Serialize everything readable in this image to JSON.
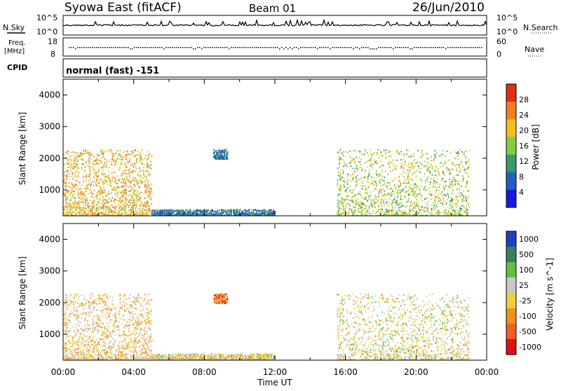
{
  "header": {
    "station": "Syowa East (fitACF)",
    "beam": "Beam 01",
    "date": "26/Jun/2010"
  },
  "nsky_panel": {
    "left_label": "N.Sky",
    "right_label": "N.Search",
    "left_ticks": [
      "10^5",
      "10^0"
    ],
    "right_ticks": [
      "10^5",
      "10^0"
    ]
  },
  "freq_panel": {
    "left_label_1": "Freq.",
    "left_label_2": "[MHz]",
    "right_label": "Nave",
    "left_ticks": [
      "18",
      "8"
    ],
    "right_ticks": [
      "60",
      "0"
    ]
  },
  "cpid": {
    "label": "CPID",
    "value": "normal (fast) -151"
  },
  "power_panel": {
    "ylabel": "Slant Range [km]",
    "yticks": [
      "1000",
      "2000",
      "3000",
      "4000"
    ],
    "colorbar_label": "Power [dB]",
    "colorbar_ticks": [
      "4",
      "8",
      "12",
      "16",
      "20",
      "24",
      "28"
    ],
    "colors": [
      "#1818e0",
      "#2060c0",
      "#3a9a6a",
      "#88cc44",
      "#f0c020",
      "#f08020",
      "#e03010"
    ]
  },
  "velocity_panel": {
    "ylabel": "Slant Range [km]",
    "yticks": [
      "1000",
      "2000",
      "3000",
      "4000"
    ],
    "colorbar_label": "Velocity [m s^-1]",
    "colorbar_ticks": [
      "1000",
      "500",
      "100",
      "25",
      "-25",
      "-100",
      "-500",
      "-1000"
    ],
    "colors": [
      "#2040c0",
      "#3a8060",
      "#60c040",
      "#c8c8c8",
      "#f0d040",
      "#f09020",
      "#f06020",
      "#e01010"
    ]
  },
  "xaxis": {
    "label": "Time UT",
    "ticks": [
      "00:00",
      "04:00",
      "08:00",
      "12:00",
      "16:00",
      "20:00",
      "00:00"
    ]
  },
  "chart_data": [
    {
      "type": "heatmap",
      "title": "Power",
      "x_range": [
        "00:00",
        "24:00"
      ],
      "ylabel": "Slant Range [km]",
      "ylim": [
        180,
        4500
      ],
      "colorbar": {
        "label": "Power [dB]",
        "ticks": [
          4,
          8,
          12,
          16,
          20,
          24,
          28
        ],
        "range": [
          0,
          30
        ]
      },
      "regions": [
        {
          "t_start": 0.0,
          "t_end": 5.0,
          "range_min": 200,
          "range_max": 2300,
          "typical_power": 20
        },
        {
          "t_start": 5.0,
          "t_end": 12.0,
          "range_min": 200,
          "range_max": 400,
          "typical_power": 8
        },
        {
          "t_start": 8.5,
          "t_end": 9.3,
          "range_min": 2000,
          "range_max": 2300,
          "typical_power": 8
        },
        {
          "t_start": 15.5,
          "t_end": 23.0,
          "range_min": 200,
          "range_max": 2300,
          "typical_power": 16
        }
      ]
    },
    {
      "type": "heatmap",
      "title": "Velocity",
      "x_range": [
        "00:00",
        "24:00"
      ],
      "ylabel": "Slant Range [km]",
      "ylim": [
        180,
        4500
      ],
      "colorbar": {
        "label": "Velocity [m s^-1]",
        "ticks": [
          1000,
          500,
          100,
          25,
          -25,
          -100,
          -500,
          -1000
        ],
        "range": [
          -1000,
          1000
        ]
      },
      "regions": [
        {
          "t_start": 0.0,
          "t_end": 5.0,
          "range_min": 200,
          "range_max": 2300,
          "typical_velocity": -100
        },
        {
          "t_start": 5.0,
          "t_end": 12.0,
          "range_min": 200,
          "range_max": 400,
          "typical_velocity": -25
        },
        {
          "t_start": 8.5,
          "t_end": 9.3,
          "range_min": 2000,
          "range_max": 2300,
          "typical_velocity": -500
        },
        {
          "t_start": 15.5,
          "t_end": 23.0,
          "range_min": 200,
          "range_max": 2300,
          "typical_velocity": 25
        }
      ]
    }
  ]
}
